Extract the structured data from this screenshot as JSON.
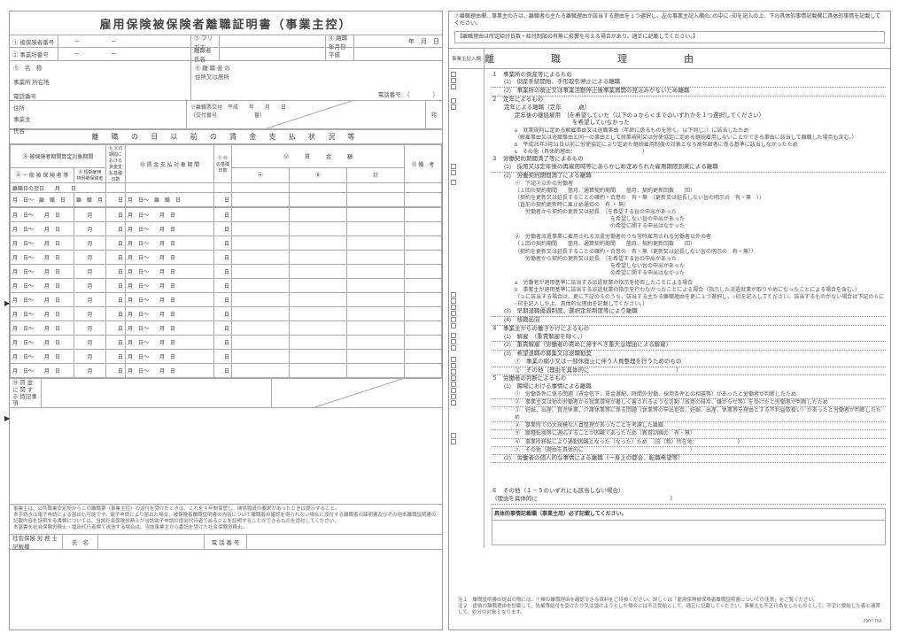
{
  "title": "雇用保険被保険者離職証明書（事業主控）",
  "left": {
    "f1": "① 被保険者番号",
    "f2": "② 事業所番号",
    "f3": "③ フリガナ",
    "f3b": "離職者氏名",
    "f4": "④ 離職 年月日",
    "heisei": "平成",
    "f5_name": "⑤　名　称",
    "f5_addr": "事業所 所在地",
    "f5_tel": "電話番号",
    "f6": "⑥ 離 職 者 の",
    "f6b": "住所又は居所",
    "f6c": "電話番号　（　　　　）",
    "issue": "※離職票交付　平成　　年　　月　　日",
    "issue2": "（交付番号　　　　　　　番）",
    "owner": "事業主",
    "owner_addr": "住所",
    "owner_name": "氏名",
    "seal": "㊞",
    "wage_hdr": "離 職 の 日 以 前 の 賃 金 支 払 状 況 等",
    "t8": "⑧ 被保険者期間算定対象期間",
    "tA": "Ⓐ 一 般 被 保 険 者 等",
    "tB": "Ⓑ 短期雇用特例被保険者",
    "t9": "⑨ ⑧の期間における賃金支払基礎日数",
    "t10": "⑩ 賃 金 支 払 対 象 期 間",
    "t11": "⑪ ⑩の基礎日数",
    "t12": "⑫　　　賃　　　金　　　額",
    "t12a": "Ⓐ",
    "t12b": "Ⓑ",
    "t12c": "計",
    "t13": "⑬ 備　考",
    "r_label": "離職日の翌日　　月　　日",
    "row_tmpl_a": "月　日～　離　職　日",
    "row_tmpl_b": "離　職　月",
    "row_wage": "月　日～　　月　日",
    "day": "日",
    "t14": "⑭ 賃 金 に 関 す る 特記事項",
    "notes": "事業主は、公共職業安定所からこの離職票（事業主控）の返付を受けたときは、これを４年間保管し、関係職員の要求があったときは提示すること。\n本手続きは電子申請による届出も可能です。電子申請により届出た場合、被保険者離職証明書の内容について離職者の確認を得られない場合に添付する離職者の疎明書及びその他本離職証明書の記載内容を証明する書類については、当該社会保険労務士が当該電子申請の提出代行者であることを証明することができるものを添付してください。\n本届書を社会保険労務士・提出代行者欄て送信する場合は、当該事業主から委託を受けた社会保険労務士。",
    "footer1": "社会保険 労 務 士 記載欄",
    "footer2": "氏　名",
    "footer3": "電 話 番 号"
  },
  "right": {
    "hdr": "⑦離職理由欄…事業主の方は、離職者の主たる離職理由が該当する理由を１つ選択し、左の事業主記入欄の□の中に○印を記入の上、下の具体的事情記載欄に具体的事情を記載してください。",
    "note_box": "【離職理由は所定給付日数・給付制限の有無に影響を与える場合があり、適正に記載してください。】",
    "col_lbl": "事業主記入欄",
    "reason_title": "離　　職　　理　　由",
    "r1": "１　事業所の倒産等によるもの",
    "r1_1": "(1)　倒産手続開始、手形取引停止による離職",
    "r1_2": "(2)　事業所の廃止又は事業活動停止後事業再開の見込みがないため離職",
    "r2": "２　定年によるもの",
    "r2a": "定年による離職（定年　　　歳）",
    "r2b": "定年後の継続雇用　｛を希望していた（以下のａからｃまでのいずれかを１つ選択してください）\n　　　　　　　　　　を希望していなかった",
    "r2b_a": "a　就業規則に定める解雇事由又は退職事由（年齢に係るものを除く。以下同じ。）に該当したため\n（解雇事由又は退職事由と同一の事由として就業規則又は労使協定に定める継続雇用しないことができる事由に該当して離職した場合も含む。）",
    "r2b_b": "b　平成25年3月31日以前に労使協定により定めた継続雇用制度の対象となる高年齢者に係る基準に該当しなかったため",
    "r2b_c": "c　その他（具体的理由：　　　　　　　　　　　　　）",
    "r3": "３　労働契約期間満了等によるもの",
    "r3_1": "(1)　採用又は定年後の再雇用時等にあらかじめ定められた雇用期限到来による離職",
    "r3_2": "(2)　労働契約期間満了による離職",
    "r3_2a": "①　下記②以外の労働者\n（１回の契約期間　　箇月、通算契約期間　　箇月、契約更新回数　　回）\n（契約を更新又は延長することの確約・合意の　有・無　（更新又は延長しない旨の明示の　有・無　））\n（直前の契約更新時に雇止め通知の　有 ・ 無）",
    "r3_2a2": "労働者から契約の更新又は延長　｛を希望する旨の申出があった\n　　　　　　　　　　　　　　　　を希望しない旨の申出があった\n　　　　　　　　　　　　　　　　の希望に関する申出はなかった",
    "r3_2b": "②　労働者派遣事業に雇用される派遣労働者のうち常時雇用される労働者以外の者\n（１回の契約期間　　箇月、通算契約期間　　箇月、契約更新回数　　回）\n（契約を更新又は延長することの確約・合意の　有・無（更新又は延長しない旨の明示の　有・無））",
    "r3_2b2": "労働者から契約の更新又は延長　｛を希望する旨の申出があった\n　　　　　　　　　　　　　　　　を希望しない旨の申出があった\n　　　　　　　　　　　　　　　　の希望に関する申出はなかった",
    "r3_2b3": "a　労働者が適用基準に該当する派遣就業の指示を拒否したことによる場合\nb　事業主が適用基準に該当する派遣就業の指示を行わなかったことによる場合（指示した派遣就業が取りやめになったことによる場合を含む。）\n（ａに該当する場合は、更に下記の５のうち、該当する主たる離職理由を更に１つ選択し、○印を記入してください。該当するものがない場合は下記の６に○印を記入した上、具体的な理由を記載してください。）",
    "r3_3": "(3)　早期退職優遇制度、選択定年制度等により離職",
    "r3_4": "(4)　移籍出向",
    "r4": "４　事業主からの働きかけによるもの",
    "r4_1": "(1)　解雇　（重責解雇を除く。）",
    "r4_2": "(2)　重責解雇（労働者の責めに帰すべき重大な理由による解雇）",
    "r4_3": "(3)　希望退職の募集又は退職勧奨",
    "r4_3a": "①　事業の縮小又は一部休廃止に伴う人員整理を行うためのもの",
    "r4_3b": "②　その他（理由を具体的に　　　　　　　　　　　　　　　）",
    "r5": "５　労働者の判断によるもの",
    "r5_1": "(1)　職場における事情による離職",
    "r5_1a": "①　労働条件に係る問題（賃金低下、賃金遅配、時間外労働、採用条件との相違等）があったと労働者が判断したため",
    "r5_1b": "②　事業主又は他の労働者から就業環境が著しく害されるような言動（故意の排斥、嫌がらせ等）を受けたと労働者が判断したため",
    "r5_1c": "③　妊娠、出産、育児休業、介護休業等に係る問題（休業等の申出拒否、妊娠、出産、休業等を理由とする不利益取扱い）があったと労働者が判断したため",
    "r5_1d": "④　事業所での大規模な人員整理があったことを考慮した離職",
    "r5_1e": "⑤　職種転換等に適応することが困難であったため（教育訓練の　有・無）",
    "r5_1f": "⑥　事業所移転により通勤困難となった（なった）ため　（旧（新）所在地：　　　　　　　　）",
    "r5_1g": "⑦　その他（理由を具体的に　　　　　　　　　　　　　　　　　　　　）",
    "r5_2": "(2)　労働者の個人的な事情による離職（一身上の都合、転職希望等）",
    "r6": "６　その他（１－５のいずれにも該当しない場合）\n（理由を具体的に　　　　　　　　　　　　　　　　　　　　　　　）",
    "detail": "具体的事情記載欄（事業主用）必ず記載してください。",
    "foot1": "注１　離職証明書の提出の際には、⑦欄の離職理由を確認できる資料をご持参ください。詳しくは「雇用保険被保険者離職証明書についての注意」をご覧ください。",
    "foot2": "注２　虚偽の離職理由を記載して、失業等給付を受けたり又は受けようとした場合には不正受給として、適正に記載してください。事業主も不正行為をしたものとして、不正に受給した者と連帯して、処分の対象となります。",
    "code": "2907 TNI"
  },
  "colors": {
    "line": "#aaaaaa",
    "text": "#444444",
    "bg": "#ffffff"
  }
}
